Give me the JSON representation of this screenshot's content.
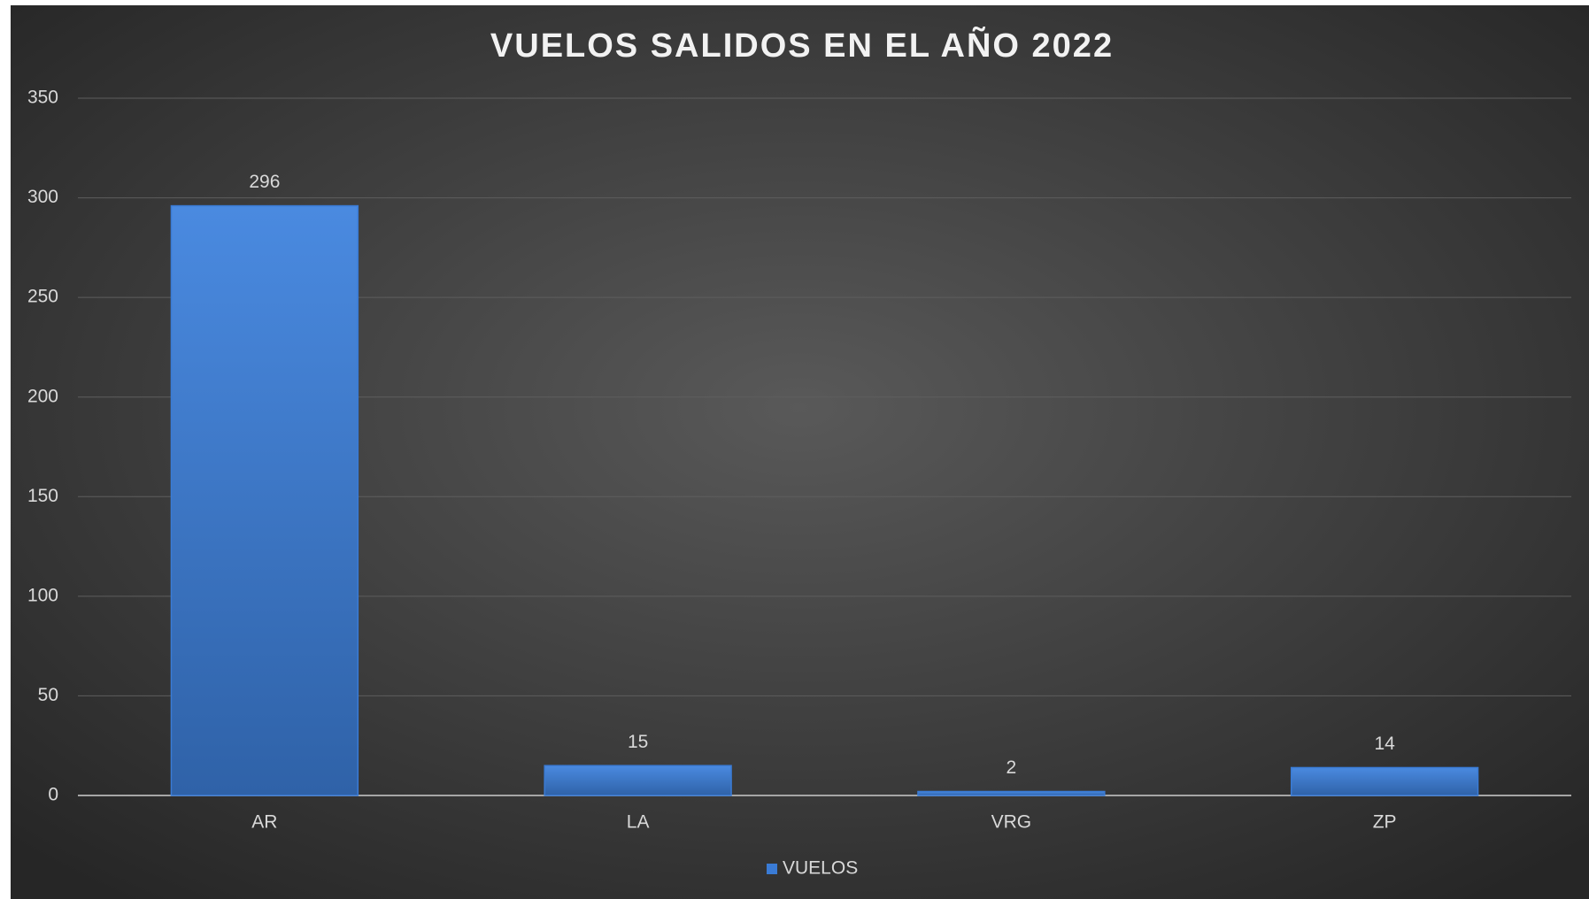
{
  "chart_data": {
    "type": "bar",
    "title": "VUELOS SALIDOS EN EL AÑO 2022",
    "categories": [
      "AR",
      "LA",
      "VRG",
      "ZP"
    ],
    "series": [
      {
        "name": "VUELOS",
        "color": "#3a7bd5",
        "values": [
          296,
          15,
          2,
          14
        ]
      }
    ],
    "ylim": [
      0,
      350
    ],
    "yticks": [
      0,
      50,
      100,
      150,
      200,
      250,
      300,
      350
    ],
    "grid": true,
    "data_labels": true,
    "legend": "bottom"
  }
}
